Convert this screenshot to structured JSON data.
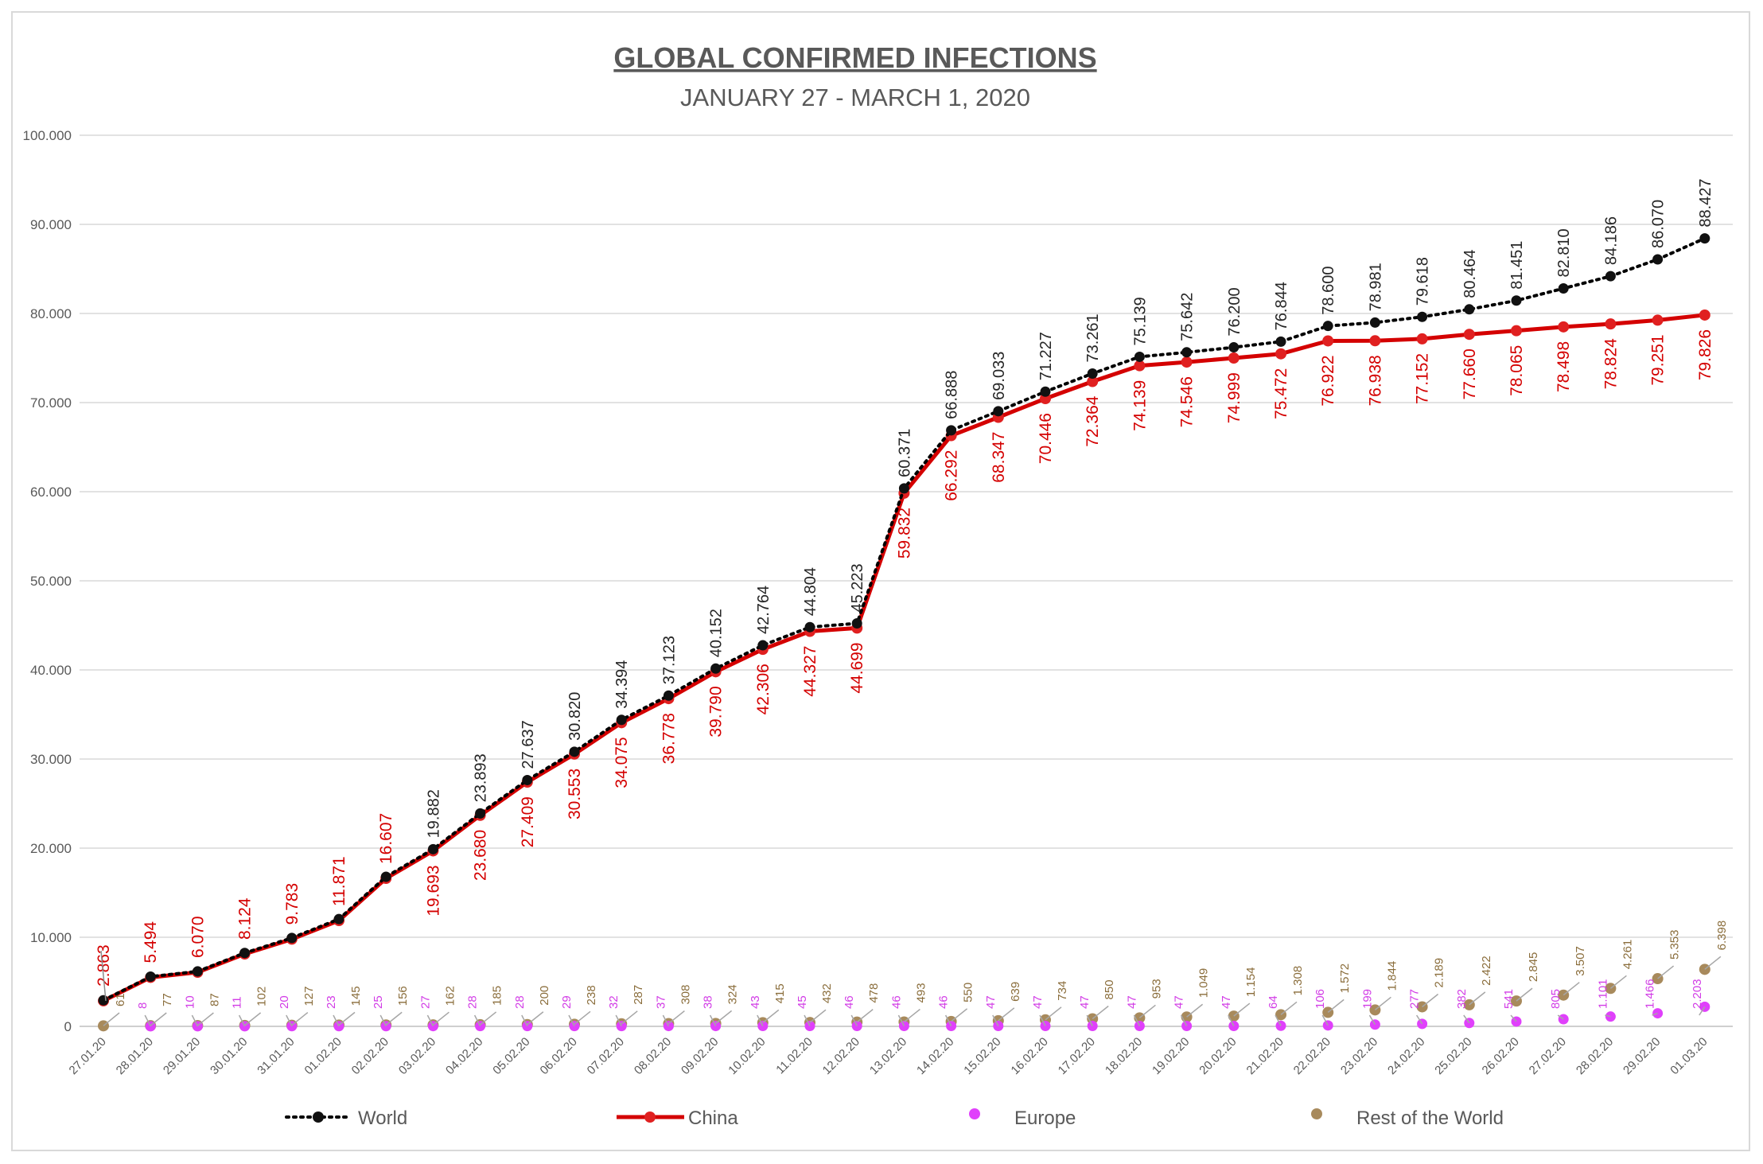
{
  "chart_data": {
    "type": "line",
    "title": "GLOBAL CONFIRMED INFECTIONS",
    "subtitle": "JANUARY 27 - MARCH 1, 2020",
    "ylim": [
      0,
      100000
    ],
    "yticks": [
      "0",
      "10.000",
      "20.000",
      "30.000",
      "40.000",
      "50.000",
      "60.000",
      "70.000",
      "80.000",
      "90.000",
      "100.000"
    ],
    "grid": true,
    "legend_position": "bottom",
    "categories": [
      "27.01.20",
      "28.01.20",
      "29.01.20",
      "30.01.20",
      "31.01.20",
      "01.02.20",
      "02.02.20",
      "03.02.20",
      "04.02.20",
      "05.02.20",
      "06.02.20",
      "07.02.20",
      "08.02.20",
      "09.02.20",
      "10.02.20",
      "11.02.20",
      "12.02.20",
      "13.02.20",
      "14.02.20",
      "15.02.20",
      "16.02.20",
      "17.02.20",
      "18.02.20",
      "19.02.20",
      "20.02.20",
      "21.02.20",
      "22.02.20",
      "23.02.20",
      "24.02.20",
      "25.02.20",
      "26.02.20",
      "27.02.20",
      "28.02.20",
      "29.02.20",
      "01.03.20"
    ],
    "series": [
      {
        "name": "World",
        "color": "#000000",
        "style": "dotted",
        "values": [
          2924,
          5579,
          6167,
          8237,
          9920,
          12038,
          16787,
          19882,
          23893,
          27637,
          30820,
          34394,
          37123,
          40152,
          42764,
          44804,
          45223,
          60371,
          66888,
          69033,
          71227,
          73261,
          75139,
          75642,
          76200,
          76844,
          78600,
          78981,
          79618,
          80464,
          81451,
          82810,
          84186,
          86070,
          88427
        ],
        "labels": [
          "",
          "",
          "",
          "",
          "",
          "",
          "",
          "19.882",
          "23.893",
          "27.637",
          "30.820",
          "34.394",
          "37.123",
          "40.152",
          "42.764",
          "44.804",
          "45.223",
          "60.371",
          "66.888",
          "69.033",
          "71.227",
          "73.261",
          "75.139",
          "75.642",
          "76.200",
          "76.844",
          "78.600",
          "78.981",
          "79.618",
          "80.464",
          "81.451",
          "82.810",
          "84.186",
          "86.070",
          "88.427"
        ]
      },
      {
        "name": "China",
        "color": "#d40000",
        "style": "solid",
        "values": [
          2863,
          5494,
          6070,
          8124,
          9783,
          11871,
          16607,
          19693,
          23680,
          27409,
          30553,
          34075,
          36778,
          39790,
          42306,
          44327,
          44699,
          59832,
          66292,
          68347,
          70446,
          72364,
          74139,
          74546,
          74999,
          75472,
          76922,
          76938,
          77152,
          77660,
          78065,
          78498,
          78824,
          79251,
          79826
        ],
        "labels": [
          "2.863",
          "5.494",
          "6.070",
          "8.124",
          "9.783",
          "11.871",
          "16.607",
          "19.693",
          "23.680",
          "27.409",
          "30.553",
          "34.075",
          "36.778",
          "39.790",
          "42.306",
          "44.327",
          "44.699",
          "59.832",
          "66.292",
          "68.347",
          "70.446",
          "72.364",
          "74.139",
          "74.546",
          "74.999",
          "75.472",
          "76.922",
          "76.938",
          "77.152",
          "77.660",
          "78.065",
          "78.498",
          "78.824",
          "79.251",
          "79.826"
        ]
      },
      {
        "name": "Europe",
        "color": "#e040fb",
        "style": "markers",
        "values": [
          null,
          8,
          10,
          11,
          20,
          23,
          25,
          27,
          28,
          28,
          29,
          32,
          37,
          38,
          43,
          45,
          46,
          46,
          46,
          47,
          47,
          47,
          47,
          47,
          47,
          64,
          106,
          199,
          277,
          382,
          541,
          805,
          1101,
          1466,
          2203
        ],
        "labels": [
          "",
          "8",
          "10",
          "11",
          "20",
          "23",
          "25",
          "27",
          "28",
          "28",
          "29",
          "32",
          "37",
          "38",
          "43",
          "45",
          "46",
          "46",
          "46",
          "47",
          "47",
          "47",
          "47",
          "47",
          "47",
          "64",
          "106",
          "199",
          "277",
          "382",
          "541",
          "805",
          "1.101",
          "1.466",
          "2.203"
        ]
      },
      {
        "name": "Rest of the World",
        "color": "#a88a5c",
        "style": "markers",
        "values": [
          61,
          77,
          87,
          102,
          127,
          145,
          156,
          162,
          185,
          200,
          238,
          287,
          308,
          324,
          415,
          432,
          478,
          493,
          550,
          639,
          734,
          850,
          953,
          1049,
          1154,
          1308,
          1572,
          1844,
          2189,
          2422,
          2845,
          3507,
          4261,
          5353,
          6398
        ],
        "labels": [
          "61",
          "77",
          "87",
          "102",
          "127",
          "145",
          "156",
          "162",
          "185",
          "200",
          "238",
          "287",
          "308",
          "324",
          "415",
          "432",
          "478",
          "493",
          "550",
          "639",
          "734",
          "850",
          "953",
          "1.049",
          "1.154",
          "1.308",
          "1.572",
          "1.844",
          "2.189",
          "2.422",
          "2.845",
          "3.507",
          "4.261",
          "5.353",
          "6.398"
        ]
      }
    ]
  }
}
